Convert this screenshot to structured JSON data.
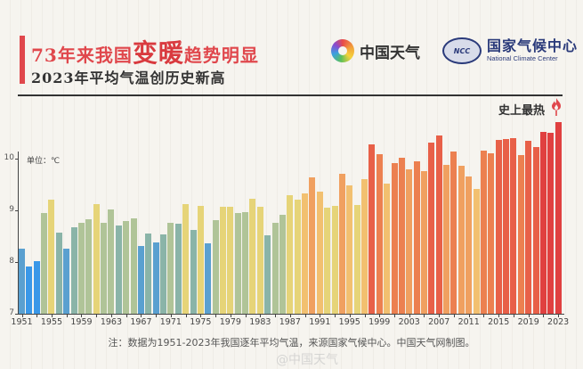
{
  "header": {
    "title_pre": "73年来我国",
    "title_big1": "变",
    "title_big2": "暖",
    "title_post": "趋势明显",
    "subtitle": "2023年平均气温创历史新高",
    "logo_weather": "中国天气",
    "logo_ncc_cn": "国家气候中心",
    "logo_ncc_en": "National Climate Center",
    "logo_ncc_emblem": "NCC"
  },
  "annotation": {
    "hottest_label": "史上最热",
    "icon": "flame-icon"
  },
  "footer": {
    "note": "注：数据为1951-2023年我国逐年平均气温，来源国家气候中心。中国天气网制图。",
    "watermark": "@中国天气"
  },
  "chart_data": {
    "type": "bar",
    "title": "73年来我国变暖趋势明显",
    "subtitle": "2023年平均气温创历史新高",
    "xlabel": "",
    "ylabel": "单位：℃",
    "ylim": [
      7,
      10.9
    ],
    "yticks": [
      7,
      8,
      9,
      10
    ],
    "xtick_labels": [
      "1951",
      "1955",
      "1959",
      "1963",
      "1967",
      "1971",
      "1975",
      "1979",
      "1983",
      "1987",
      "1991",
      "1995",
      "1999",
      "2003",
      "2007",
      "2011",
      "2015",
      "2019",
      "2023"
    ],
    "grid": false,
    "legend": null,
    "annotations": [
      {
        "x": 2023,
        "text": "史上最热"
      }
    ],
    "categories": [
      1951,
      1952,
      1953,
      1954,
      1955,
      1956,
      1957,
      1958,
      1959,
      1960,
      1961,
      1962,
      1963,
      1964,
      1965,
      1966,
      1967,
      1968,
      1969,
      1970,
      1971,
      1972,
      1973,
      1974,
      1975,
      1976,
      1977,
      1978,
      1979,
      1980,
      1981,
      1982,
      1983,
      1984,
      1985,
      1986,
      1987,
      1988,
      1989,
      1990,
      1991,
      1992,
      1993,
      1994,
      1995,
      1996,
      1997,
      1998,
      1999,
      2000,
      2001,
      2002,
      2003,
      2004,
      2005,
      2006,
      2007,
      2008,
      2009,
      2010,
      2011,
      2012,
      2013,
      2014,
      2015,
      2016,
      2017,
      2018,
      2019,
      2020,
      2021,
      2022,
      2023
    ],
    "values": [
      8.26,
      7.91,
      8.02,
      8.95,
      9.2,
      8.57,
      8.26,
      8.67,
      8.76,
      8.83,
      9.12,
      8.76,
      9.02,
      8.71,
      8.79,
      8.84,
      8.31,
      8.55,
      8.38,
      8.53,
      8.76,
      8.74,
      9.12,
      8.62,
      9.09,
      8.36,
      8.81,
      9.07,
      9.07,
      8.95,
      8.97,
      9.22,
      9.07,
      8.52,
      8.76,
      8.91,
      9.29,
      9.2,
      9.33,
      9.64,
      9.36,
      9.05,
      9.09,
      9.71,
      9.48,
      9.1,
      9.6,
      10.28,
      10.09,
      9.52,
      9.91,
      10.02,
      9.79,
      9.95,
      9.76,
      10.31,
      10.45,
      9.88,
      10.14,
      9.86,
      9.65,
      9.41,
      10.16,
      10.1,
      10.36,
      10.38,
      10.4,
      10.07,
      10.34,
      10.22,
      10.52,
      10.5,
      10.71
    ],
    "color_scale": [
      "#3a98e8",
      "#5aa0d0",
      "#8ab4a8",
      "#b0c498",
      "#e6d478",
      "#f2c070",
      "#f0a060",
      "#ec8050",
      "#e86048",
      "#e04040"
    ]
  }
}
